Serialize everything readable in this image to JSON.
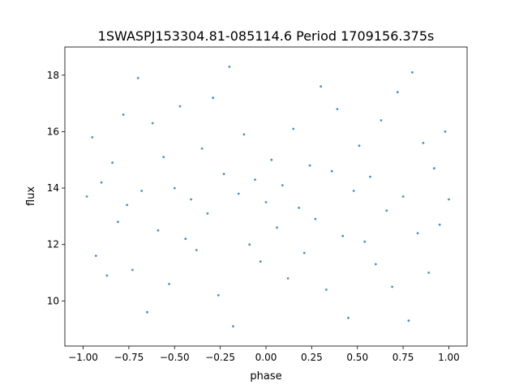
{
  "chart_data": {
    "type": "scatter",
    "title": "1SWASPJ153304.81-085114.6 Period 1709156.375s",
    "xlabel": "phase",
    "ylabel": "flux",
    "xlim": [
      -1.1,
      1.1
    ],
    "ylim": [
      8.4,
      19.0
    ],
    "xticks": [
      -1.0,
      -0.75,
      -0.5,
      -0.25,
      0.0,
      0.25,
      0.5,
      0.75,
      1.0
    ],
    "xtick_labels": [
      "−1.00",
      "−0.75",
      "−0.50",
      "−0.25",
      "0.00",
      "0.25",
      "0.50",
      "0.75",
      "1.00"
    ],
    "yticks": [
      10,
      12,
      14,
      16,
      18
    ],
    "ytick_labels": [
      "10",
      "12",
      "14",
      "16",
      "18"
    ],
    "grid": false,
    "marker_color": "#1f77b4",
    "series": [
      {
        "name": "",
        "points": [
          [
            -0.98,
            13.7
          ],
          [
            -0.95,
            15.8
          ],
          [
            -0.93,
            11.6
          ],
          [
            -0.9,
            14.2
          ],
          [
            -0.87,
            10.9
          ],
          [
            -0.84,
            14.9
          ],
          [
            -0.81,
            12.8
          ],
          [
            -0.78,
            16.6
          ],
          [
            -0.76,
            13.4
          ],
          [
            -0.73,
            11.1
          ],
          [
            -0.7,
            17.9
          ],
          [
            -0.68,
            13.9
          ],
          [
            -0.65,
            9.6
          ],
          [
            -0.62,
            16.3
          ],
          [
            -0.59,
            12.5
          ],
          [
            -0.56,
            15.1
          ],
          [
            -0.53,
            10.6
          ],
          [
            -0.5,
            14.0
          ],
          [
            -0.47,
            16.9
          ],
          [
            -0.44,
            12.2
          ],
          [
            -0.41,
            13.6
          ],
          [
            -0.38,
            11.8
          ],
          [
            -0.35,
            15.4
          ],
          [
            -0.32,
            13.1
          ],
          [
            -0.29,
            17.2
          ],
          [
            -0.26,
            10.2
          ],
          [
            -0.23,
            14.5
          ],
          [
            -0.2,
            18.3
          ],
          [
            -0.18,
            9.1
          ],
          [
            -0.15,
            13.8
          ],
          [
            -0.12,
            15.9
          ],
          [
            -0.09,
            12.0
          ],
          [
            -0.06,
            14.3
          ],
          [
            -0.03,
            11.4
          ],
          [
            0.0,
            13.5
          ],
          [
            0.03,
            15.0
          ],
          [
            0.06,
            12.6
          ],
          [
            0.09,
            14.1
          ],
          [
            0.12,
            10.8
          ],
          [
            0.15,
            16.1
          ],
          [
            0.18,
            13.3
          ],
          [
            0.21,
            11.7
          ],
          [
            0.24,
            14.8
          ],
          [
            0.27,
            12.9
          ],
          [
            0.3,
            17.6
          ],
          [
            0.33,
            10.4
          ],
          [
            0.36,
            14.6
          ],
          [
            0.39,
            16.8
          ],
          [
            0.42,
            12.3
          ],
          [
            0.45,
            9.4
          ],
          [
            0.48,
            13.9
          ],
          [
            0.51,
            15.5
          ],
          [
            0.54,
            12.1
          ],
          [
            0.57,
            14.4
          ],
          [
            0.6,
            11.3
          ],
          [
            0.63,
            16.4
          ],
          [
            0.66,
            13.2
          ],
          [
            0.69,
            10.5
          ],
          [
            0.72,
            17.4
          ],
          [
            0.75,
            13.7
          ],
          [
            0.78,
            9.3
          ],
          [
            0.8,
            18.1
          ],
          [
            0.83,
            12.4
          ],
          [
            0.86,
            15.6
          ],
          [
            0.89,
            11.0
          ],
          [
            0.92,
            14.7
          ],
          [
            0.95,
            12.7
          ],
          [
            0.98,
            16.0
          ],
          [
            1.0,
            13.6
          ]
        ]
      }
    ]
  }
}
